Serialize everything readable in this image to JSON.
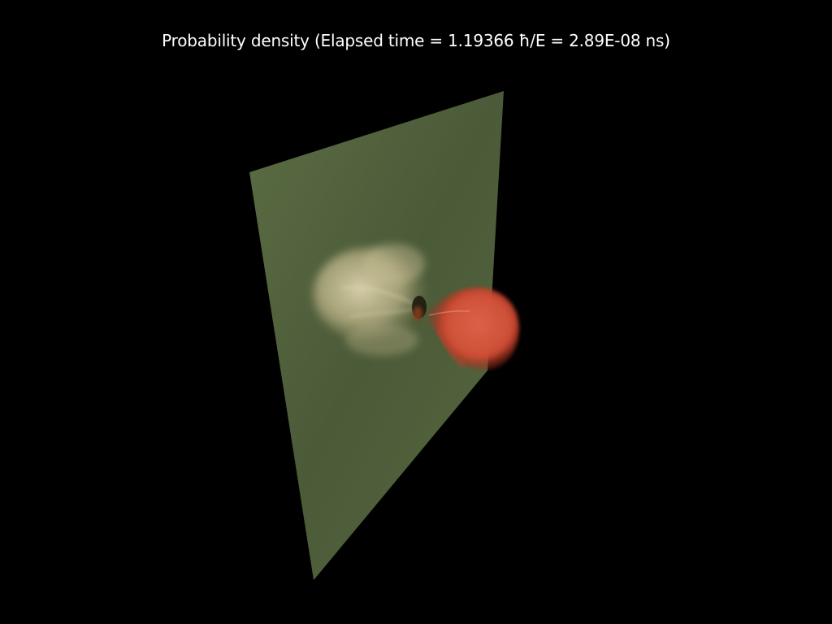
{
  "title": "Probability density (Elapsed time = 1.19366 ħ/E = 2.89E-08 ns)",
  "colors": {
    "background": "#000000",
    "plane": "#4e5e3a",
    "left_lobe": "#d8cfa8",
    "right_lobe": "#d8513a"
  }
}
